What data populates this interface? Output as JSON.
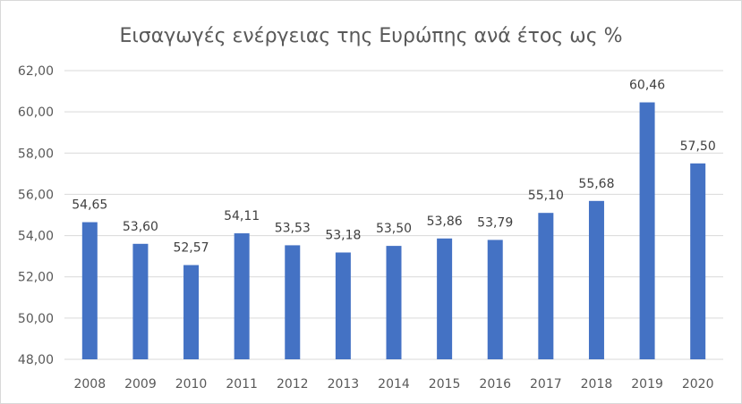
{
  "chart_data": {
    "type": "bar",
    "title": "Εισαγωγές ενέργειας της Ευρώπης ανά έτος ως %",
    "categories": [
      "2008",
      "2009",
      "2010",
      "2011",
      "2012",
      "2013",
      "2014",
      "2015",
      "2016",
      "2017",
      "2018",
      "2019",
      "2020"
    ],
    "values": [
      54.65,
      53.6,
      52.57,
      54.11,
      53.53,
      53.18,
      53.5,
      53.86,
      53.79,
      55.1,
      55.68,
      60.46,
      57.5
    ],
    "value_labels": [
      "54,65",
      "53,60",
      "52,57",
      "54,11",
      "53,53",
      "53,18",
      "53,50",
      "53,86",
      "53,79",
      "55,10",
      "55,68",
      "60,46",
      "57,50"
    ],
    "y_ticks": [
      48,
      50,
      52,
      54,
      56,
      58,
      60,
      62
    ],
    "y_tick_labels": [
      "48,00",
      "50,00",
      "52,00",
      "54,00",
      "56,00",
      "58,00",
      "60,00",
      "62,00"
    ],
    "ylim": [
      48,
      62
    ],
    "grid": true,
    "legend": "none",
    "bar_color": "#4472c4",
    "grid_color": "#d9d9d9"
  }
}
